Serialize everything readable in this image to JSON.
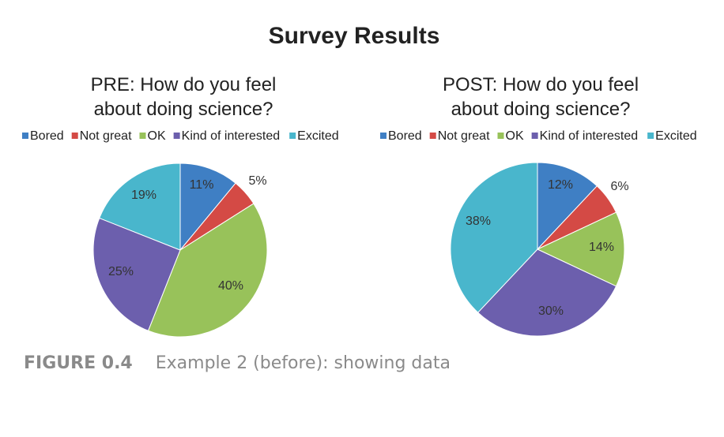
{
  "main_title": "Survey Results",
  "colors": {
    "Bored": "#3f7fc4",
    "Not great": "#d44a45",
    "OK": "#98c25a",
    "Kind of interested": "#6c5fad",
    "Excited": "#49b6cc"
  },
  "chart_data": [
    {
      "type": "pie",
      "title_lines": [
        "PRE: How do you feel",
        "about doing science?"
      ],
      "categories": [
        "Bored",
        "Not great",
        "OK",
        "Kind of interested",
        "Excited"
      ],
      "values": [
        11,
        5,
        40,
        25,
        19
      ],
      "labels": [
        "11%",
        "5%",
        "40%",
        "25%",
        "19%"
      ],
      "legend": "top"
    },
    {
      "type": "pie",
      "title_lines": [
        "POST: How do you feel",
        "about doing science?"
      ],
      "categories": [
        "Bored",
        "Not great",
        "OK",
        "Kind of interested",
        "Excited"
      ],
      "values": [
        12,
        6,
        14,
        30,
        38
      ],
      "labels": [
        "12%",
        "6%",
        "14%",
        "30%",
        "38%"
      ],
      "legend": "top"
    }
  ],
  "caption": {
    "label": "FIGURE 0.4",
    "text": "Example 2 (before): showing data"
  }
}
